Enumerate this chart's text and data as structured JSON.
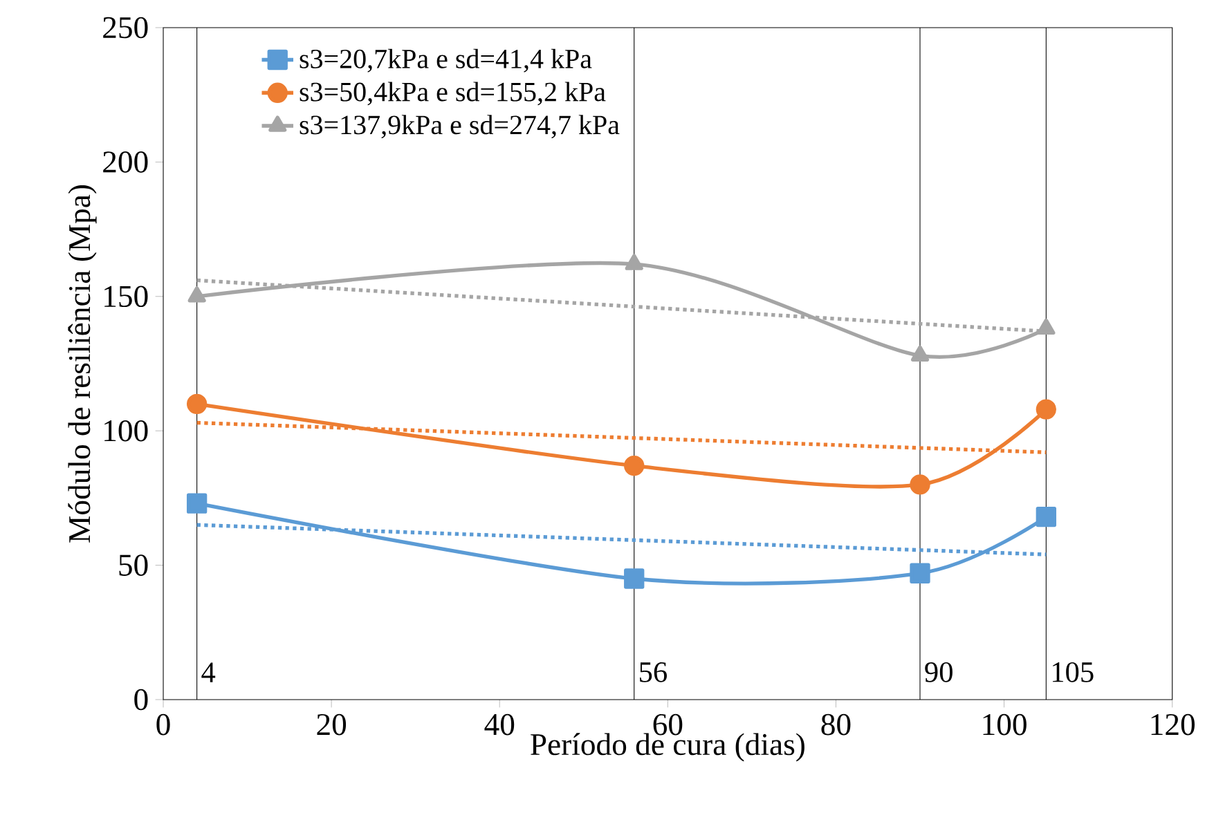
{
  "chart_data": {
    "type": "line",
    "xlabel": "Período de cura (dias)",
    "ylabel": "Módulo de resiliência (Mpa)",
    "xlim": [
      0,
      120
    ],
    "xticks": [
      0,
      20,
      40,
      60,
      80,
      100,
      120
    ],
    "ylim": [
      0,
      250
    ],
    "yticks": [
      0,
      50,
      100,
      150,
      200,
      250
    ],
    "grid": false,
    "legend": "top left",
    "series": [
      {
        "name": "s3=20,7kPa e sd=41,4 kPa",
        "color": "#5b9bd5",
        "x": [
          4,
          56,
          90,
          105
        ],
        "values": [
          73,
          45,
          47,
          68
        ],
        "marker": "square",
        "line_style": "solid"
      },
      {
        "name": "s3=50,4kPa e sd=155,2 kPa",
        "color": "#ed7d31",
        "x": [
          4,
          56,
          90,
          105
        ],
        "values": [
          110,
          87,
          80,
          108
        ],
        "marker": "circle",
        "line_style": "solid"
      },
      {
        "name": "s3=137,9kPa e sd=274,7 kPa",
        "color": "#a5a5a5",
        "x": [
          4,
          56,
          90,
          105
        ],
        "values": [
          150,
          162,
          128,
          138
        ],
        "marker": "triangle",
        "line_style": "solid"
      },
      {
        "color": "#5b9bd5",
        "x": [
          4,
          105
        ],
        "values": [
          65,
          54
        ],
        "marker": "none",
        "line_style": "dotted"
      },
      {
        "color": "#ed7d31",
        "x": [
          4,
          105
        ],
        "values": [
          103,
          92
        ],
        "marker": "none",
        "line_style": "dotted"
      },
      {
        "color": "#a5a5a5",
        "x": [
          4,
          105
        ],
        "values": [
          156,
          137
        ],
        "marker": "none",
        "line_style": "dotted"
      }
    ],
    "ref_lines": [
      {
        "axis": "x",
        "value": 4,
        "label": "4",
        "color": "#000000"
      },
      {
        "axis": "x",
        "value": 56,
        "label": "56",
        "color": "#000000"
      },
      {
        "axis": "x",
        "value": 90,
        "label": "90",
        "color": "#000000"
      },
      {
        "axis": "x",
        "value": 105,
        "label": "105",
        "color": "#000000"
      }
    ]
  }
}
